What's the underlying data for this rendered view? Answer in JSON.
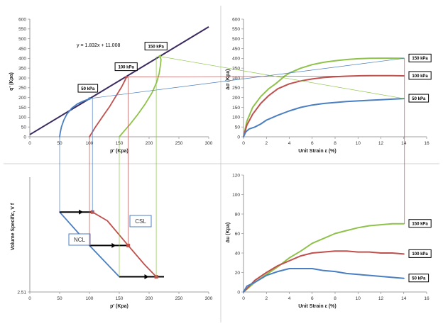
{
  "colors": {
    "blue": "#4a7fc1",
    "red": "#c0504d",
    "green": "#8fc24a",
    "purple": "#3c2b60",
    "arrow": "#000000",
    "frame": "#bfbfbf"
  },
  "chart_data": [
    {
      "id": "qp",
      "type": "line",
      "title": "",
      "xlabel": "p' (Kpa)",
      "ylabel": "q' (Kpa)",
      "xlim": [
        0,
        300
      ],
      "ylim": [
        0,
        600
      ],
      "xticks": [
        0,
        50,
        100,
        150,
        200,
        250,
        300
      ],
      "yticks": [
        0,
        50,
        100,
        150,
        200,
        250,
        300,
        350,
        400,
        450,
        500,
        550,
        600
      ],
      "equation": "y = 1.832x + 11.008",
      "fit": {
        "slope": 1.832,
        "intercept": 11.008,
        "x": [
          0,
          300
        ],
        "color": "#3c2b60"
      },
      "series": [
        {
          "color": "#4a7fc1",
          "x": [
            50,
            51,
            53,
            57,
            62,
            70,
            80,
            90,
            97,
            101
          ],
          "y": [
            0,
            20,
            50,
            85,
            115,
            145,
            168,
            182,
            190,
            195
          ]
        },
        {
          "color": "#c0504d",
          "x": [
            100,
            104,
            110,
            118,
            126,
            134,
            141,
            148,
            154,
            159,
            162
          ],
          "y": [
            0,
            20,
            50,
            85,
            120,
            155,
            190,
            225,
            255,
            285,
            305
          ]
        },
        {
          "color": "#8fc24a",
          "x": [
            150,
            157,
            167,
            180,
            193,
            205,
            213,
            217,
            219,
            220,
            218
          ],
          "y": [
            0,
            25,
            60,
            110,
            165,
            225,
            280,
            325,
            365,
            395,
            410
          ]
        }
      ],
      "points": [
        {
          "label": "50 kPa",
          "x": 100,
          "y": 195,
          "color": "#4a7fc1",
          "label_dx": -16,
          "label_dy": -20
        },
        {
          "label": "100 kPa",
          "x": 162,
          "y": 305,
          "color": "#c0504d",
          "label_dx": -16,
          "label_dy": -20
        },
        {
          "label": "150 kPa",
          "x": 218,
          "y": 410,
          "color": "#8fc24a",
          "label_dx": -21,
          "label_dy": -20
        }
      ]
    },
    {
      "id": "qstrain",
      "type": "line",
      "title": "",
      "xlabel": "Unit Strain ε (%)",
      "ylabel": "∆σ (Kpa)",
      "xlim": [
        0,
        16
      ],
      "ylim": [
        0,
        600
      ],
      "xticks": [
        0,
        2,
        4,
        6,
        8,
        10,
        12,
        14,
        16
      ],
      "yticks": [
        0,
        50,
        100,
        150,
        200,
        250,
        300,
        350,
        400,
        450,
        500,
        550,
        600
      ],
      "series": [
        {
          "name": "150 kPa",
          "color": "#8fc24a",
          "x": [
            0,
            0.3,
            0.8,
            1.5,
            2.2,
            2.8,
            3.2,
            3.6,
            4,
            5,
            6,
            7,
            8,
            9,
            10,
            11,
            12,
            13,
            14
          ],
          "y": [
            0,
            80,
            150,
            205,
            245,
            270,
            290,
            310,
            325,
            350,
            368,
            380,
            388,
            394,
            398,
            400,
            401,
            401,
            400
          ]
        },
        {
          "name": "100 kPa",
          "color": "#c0504d",
          "x": [
            0,
            0.3,
            0.8,
            1.5,
            2.2,
            3,
            4,
            5,
            6,
            7,
            8,
            9,
            10,
            11,
            12,
            13,
            14
          ],
          "y": [
            0,
            60,
            115,
            170,
            210,
            245,
            270,
            285,
            295,
            302,
            306,
            309,
            311,
            312,
            312,
            312,
            311
          ]
        },
        {
          "name": "50 kPa",
          "color": "#4a7fc1",
          "x": [
            0,
            0.2,
            0.5,
            1,
            1.5,
            2,
            3,
            4,
            5,
            6,
            7,
            8,
            9,
            10,
            11,
            12,
            13,
            14
          ],
          "y": [
            0,
            25,
            40,
            50,
            65,
            85,
            110,
            132,
            150,
            162,
            170,
            175,
            180,
            183,
            186,
            189,
            192,
            195
          ]
        }
      ],
      "end_labels": [
        {
          "text": "150 kPa",
          "y": 400
        },
        {
          "text": "100 kPa",
          "y": 311
        },
        {
          "text": "50 kPa",
          "y": 195
        }
      ]
    },
    {
      "id": "vp",
      "type": "line",
      "title": "",
      "xlabel": "p' (Kpa)",
      "ylabel": "Volume Specific, V f",
      "xlim": [
        0,
        300
      ],
      "ylim": [
        2.51,
        3.3
      ],
      "xticks": [
        0,
        50,
        100,
        150,
        200,
        250,
        300
      ],
      "yticks": [
        2.51
      ],
      "ncl_label": "NCL",
      "csl_label": "CSL",
      "ncl": {
        "color": "#4a7fc1",
        "x": [
          50,
          100,
          150
        ],
        "y": [
          3.06,
          2.83,
          2.615
        ]
      },
      "csl": {
        "color": "#c0504d",
        "x": [
          105,
          130,
          165,
          192,
          212
        ],
        "y": [
          3.06,
          3.0,
          2.83,
          2.7,
          2.615
        ]
      },
      "arrows": [
        {
          "x": [
            50,
            105
          ],
          "y": [
            3.06,
            3.06
          ]
        },
        {
          "x": [
            100,
            165
          ],
          "y": [
            2.83,
            2.83
          ]
        },
        {
          "x": [
            150,
            225
          ],
          "y": [
            2.615,
            2.615
          ]
        }
      ],
      "markers": [
        {
          "x": 105,
          "y": 3.06,
          "color": "#c0504d"
        },
        {
          "x": 165,
          "y": 2.83,
          "color": "#c0504d"
        },
        {
          "x": 212,
          "y": 2.615,
          "color": "#c0504d"
        }
      ]
    },
    {
      "id": "ustrain",
      "type": "line",
      "title": "",
      "xlabel": "Unit Strain ε (%)",
      "ylabel": "∆u (Kpa)",
      "xlim": [
        0,
        16
      ],
      "ylim": [
        0,
        120
      ],
      "xticks": [
        0,
        2,
        4,
        6,
        8,
        10,
        12,
        14,
        16
      ],
      "yticks": [
        0,
        20,
        40,
        60,
        80,
        100,
        120
      ],
      "series": [
        {
          "name": "150 kPa",
          "color": "#8fc24a",
          "x": [
            0,
            0.5,
            1,
            2,
            3,
            4,
            5,
            6,
            7,
            8,
            9,
            10,
            11,
            12,
            13,
            14
          ],
          "y": [
            0,
            5,
            10,
            18,
            26,
            35,
            42,
            50,
            55,
            60,
            63,
            66,
            68,
            69,
            70,
            70
          ]
        },
        {
          "name": "100 kPa",
          "color": "#c0504d",
          "x": [
            0,
            0.5,
            1,
            2,
            3,
            4,
            5,
            6,
            7,
            8,
            9,
            10,
            11,
            12,
            13,
            14
          ],
          "y": [
            0,
            6,
            12,
            20,
            27,
            32,
            37,
            40,
            41,
            42,
            42,
            41,
            41,
            40,
            40,
            39
          ]
        },
        {
          "name": "50 kPa",
          "color": "#4a7fc1",
          "x": [
            0,
            0.3,
            1,
            2,
            3,
            4,
            5,
            6,
            7,
            8,
            9,
            10,
            11,
            12,
            13,
            14
          ],
          "y": [
            0,
            6,
            10,
            17,
            21,
            24,
            24,
            24,
            22,
            21,
            19,
            18,
            17,
            16,
            15,
            14
          ]
        }
      ],
      "end_labels": [
        {
          "text": "150 kPa",
          "y": 70
        },
        {
          "text": "100 kPa",
          "y": 39
        },
        {
          "text": "50 kPa",
          "y": 14
        }
      ]
    }
  ]
}
